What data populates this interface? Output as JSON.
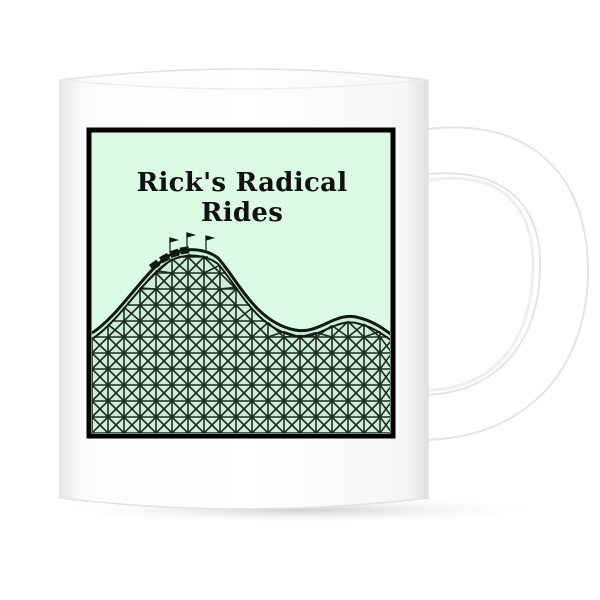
{
  "print": {
    "title": "Rick's Radical Rides",
    "background_color": "#dcfbe5",
    "frame_color": "#000000",
    "artwork": "wooden-roller-coaster-icon"
  },
  "mug": {
    "body_color": "#ffffff",
    "shadow_color": "#e2e2e2"
  }
}
